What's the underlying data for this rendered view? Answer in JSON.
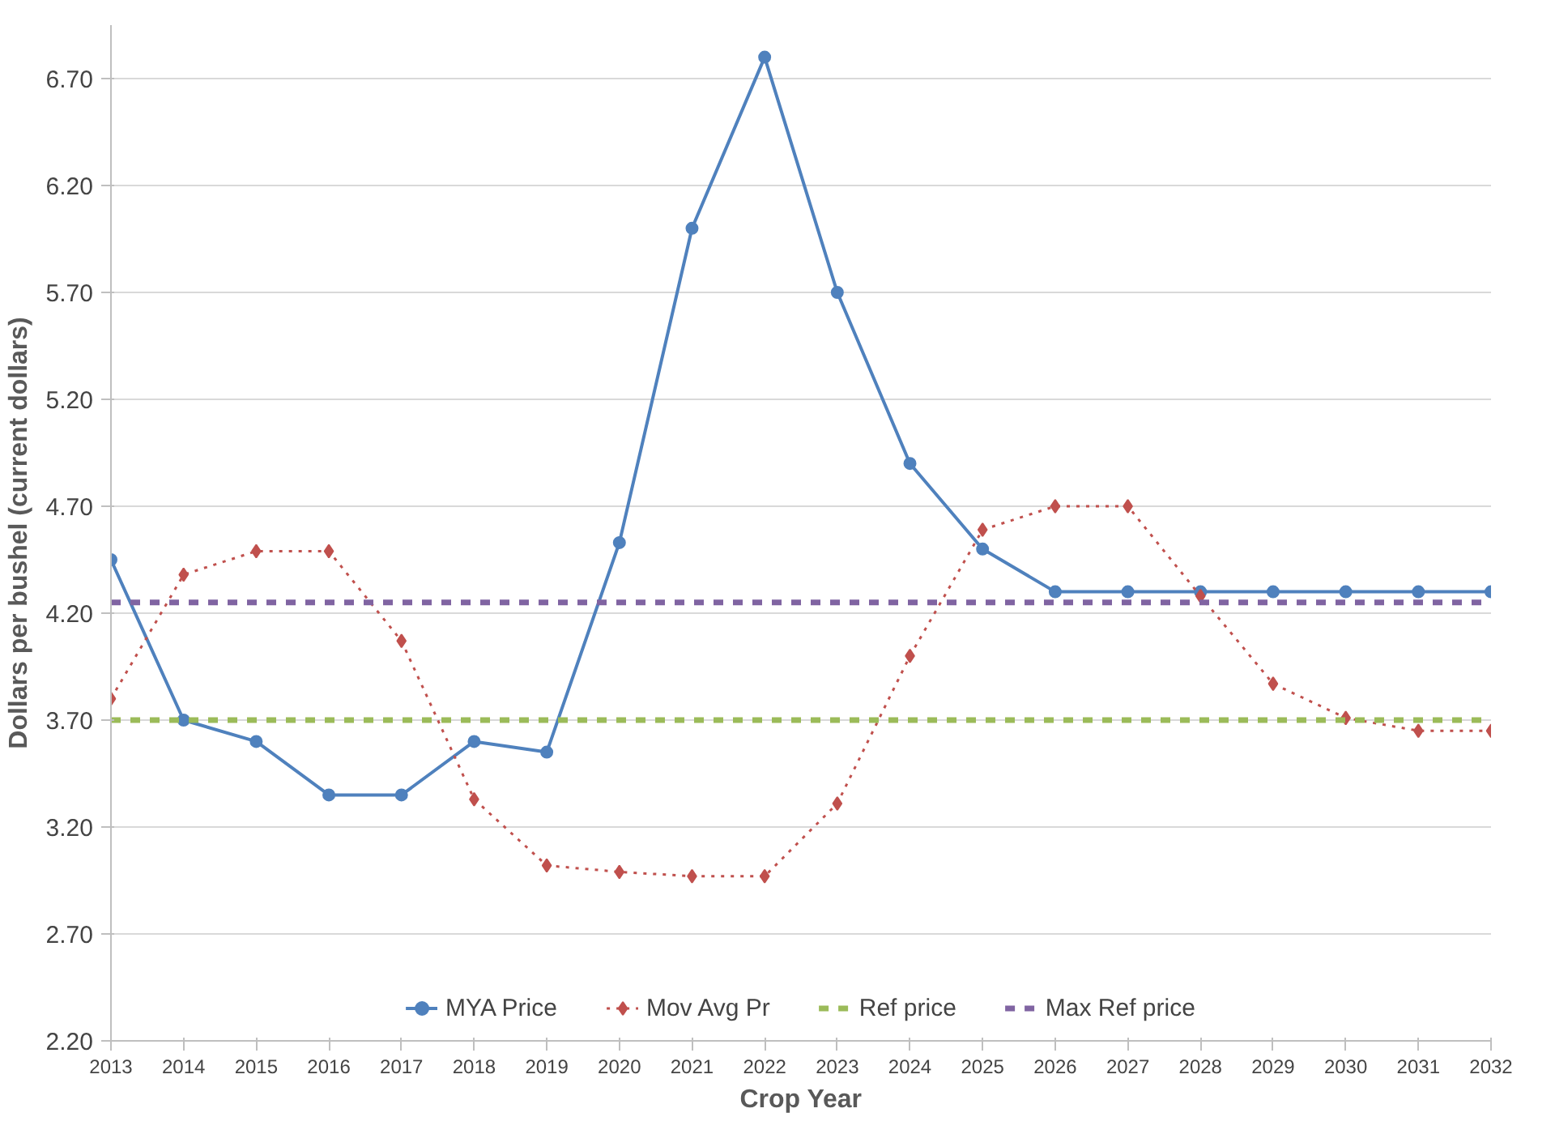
{
  "chart_data": {
    "type": "line",
    "xlabel": "Crop Year",
    "ylabel": "Dollars per bushel (current dollars)",
    "categories": [
      "2013",
      "2014",
      "2015",
      "2016",
      "2017",
      "2018",
      "2019",
      "2020",
      "2021",
      "2022",
      "2023",
      "2024",
      "2025",
      "2026",
      "2027",
      "2028",
      "2029",
      "2030",
      "2031",
      "2032"
    ],
    "ylim": [
      2.2,
      6.95
    ],
    "yticks": [
      {
        "value": 2.2,
        "label": "2.20"
      },
      {
        "value": 2.7,
        "label": "2.70"
      },
      {
        "value": 3.2,
        "label": "3.20"
      },
      {
        "value": 3.7,
        "label": "3.70"
      },
      {
        "value": 4.2,
        "label": "4.20"
      },
      {
        "value": 4.7,
        "label": "4.70"
      },
      {
        "value": 5.2,
        "label": "5.20"
      },
      {
        "value": 5.7,
        "label": "5.70"
      },
      {
        "value": 6.2,
        "label": "6.20"
      },
      {
        "value": 6.7,
        "label": "6.70"
      }
    ],
    "grid": "y",
    "legend": "bottom",
    "series": [
      {
        "name": "MYA Price",
        "color": "#4f81bd",
        "marker": "circle",
        "line_style": "solid",
        "values": [
          4.45,
          3.7,
          3.6,
          3.35,
          3.35,
          3.6,
          3.55,
          4.53,
          6.0,
          6.8,
          5.7,
          4.9,
          4.5,
          4.3,
          4.3,
          4.3,
          4.3,
          4.3,
          4.3,
          4.3
        ]
      },
      {
        "name": "Mov Avg Pr",
        "color": "#c0504d",
        "marker": "diamond",
        "line_style": "dotted",
        "values": [
          3.8,
          4.38,
          4.49,
          4.49,
          4.07,
          3.33,
          3.02,
          2.99,
          2.97,
          2.97,
          3.31,
          4.0,
          4.59,
          4.7,
          4.7,
          4.28,
          3.87,
          3.71,
          3.65,
          3.65
        ]
      },
      {
        "name": "Ref price",
        "color": "#9bbb59",
        "marker": "none",
        "line_style": "dashed",
        "values": [
          3.7,
          3.7,
          3.7,
          3.7,
          3.7,
          3.7,
          3.7,
          3.7,
          3.7,
          3.7,
          3.7,
          3.7,
          3.7,
          3.7,
          3.7,
          3.7,
          3.7,
          3.7,
          3.7,
          3.7
        ]
      },
      {
        "name": "Max Ref price",
        "color": "#8064a2",
        "marker": "none",
        "line_style": "dashed",
        "values": [
          4.25,
          4.25,
          4.25,
          4.25,
          4.25,
          4.25,
          4.25,
          4.25,
          4.25,
          4.25,
          4.25,
          4.25,
          4.25,
          4.25,
          4.25,
          4.25,
          4.25,
          4.25,
          4.25,
          4.25
        ]
      }
    ]
  }
}
